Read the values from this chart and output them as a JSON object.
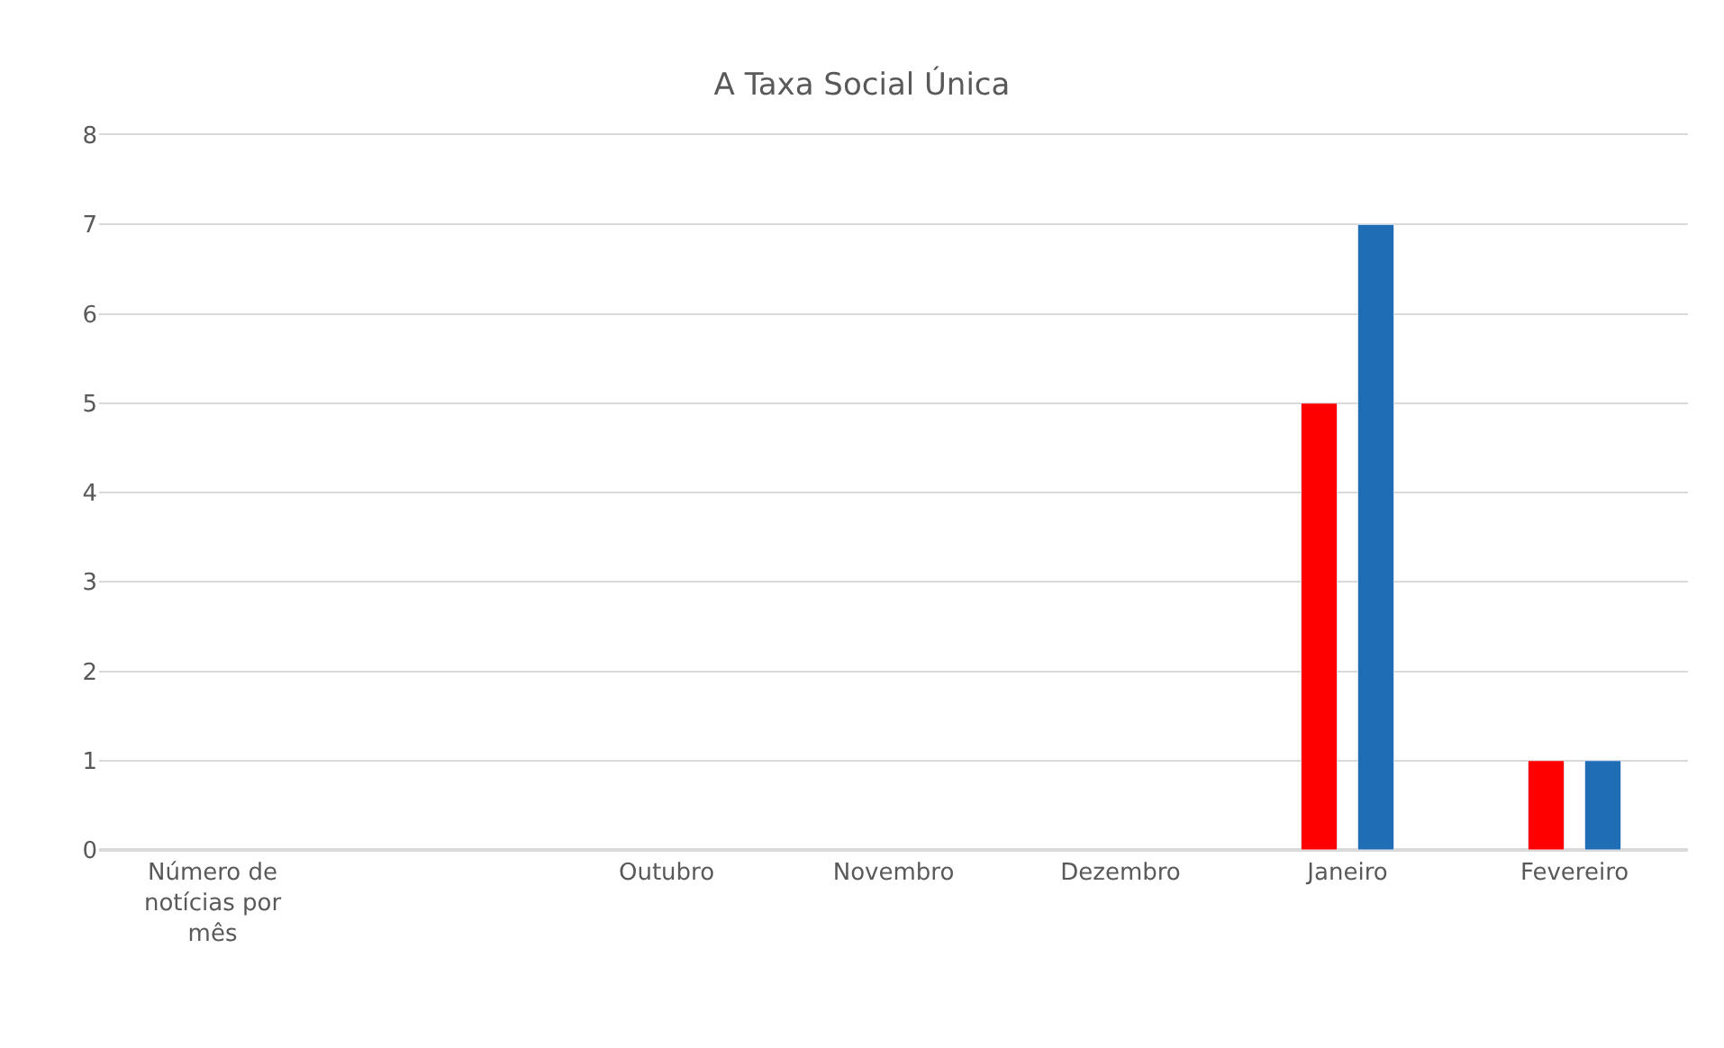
{
  "chart_data": {
    "type": "bar",
    "title": "A Taxa Social Única",
    "categories": [
      "Número de notícias por mês",
      null,
      "Outubro",
      "Novembro",
      "Dezembro",
      "Janeiro",
      "Fevereiro"
    ],
    "series": [
      {
        "color": "#ff0000",
        "values": [
          null,
          null,
          null,
          null,
          null,
          5,
          1
        ]
      },
      {
        "color": "#1f6db5",
        "values": [
          null,
          null,
          null,
          null,
          null,
          7,
          1
        ]
      }
    ],
    "ylim": [
      0,
      8
    ],
    "yticks": [
      0,
      1,
      2,
      3,
      4,
      5,
      6,
      7,
      8
    ],
    "grid": "y"
  }
}
